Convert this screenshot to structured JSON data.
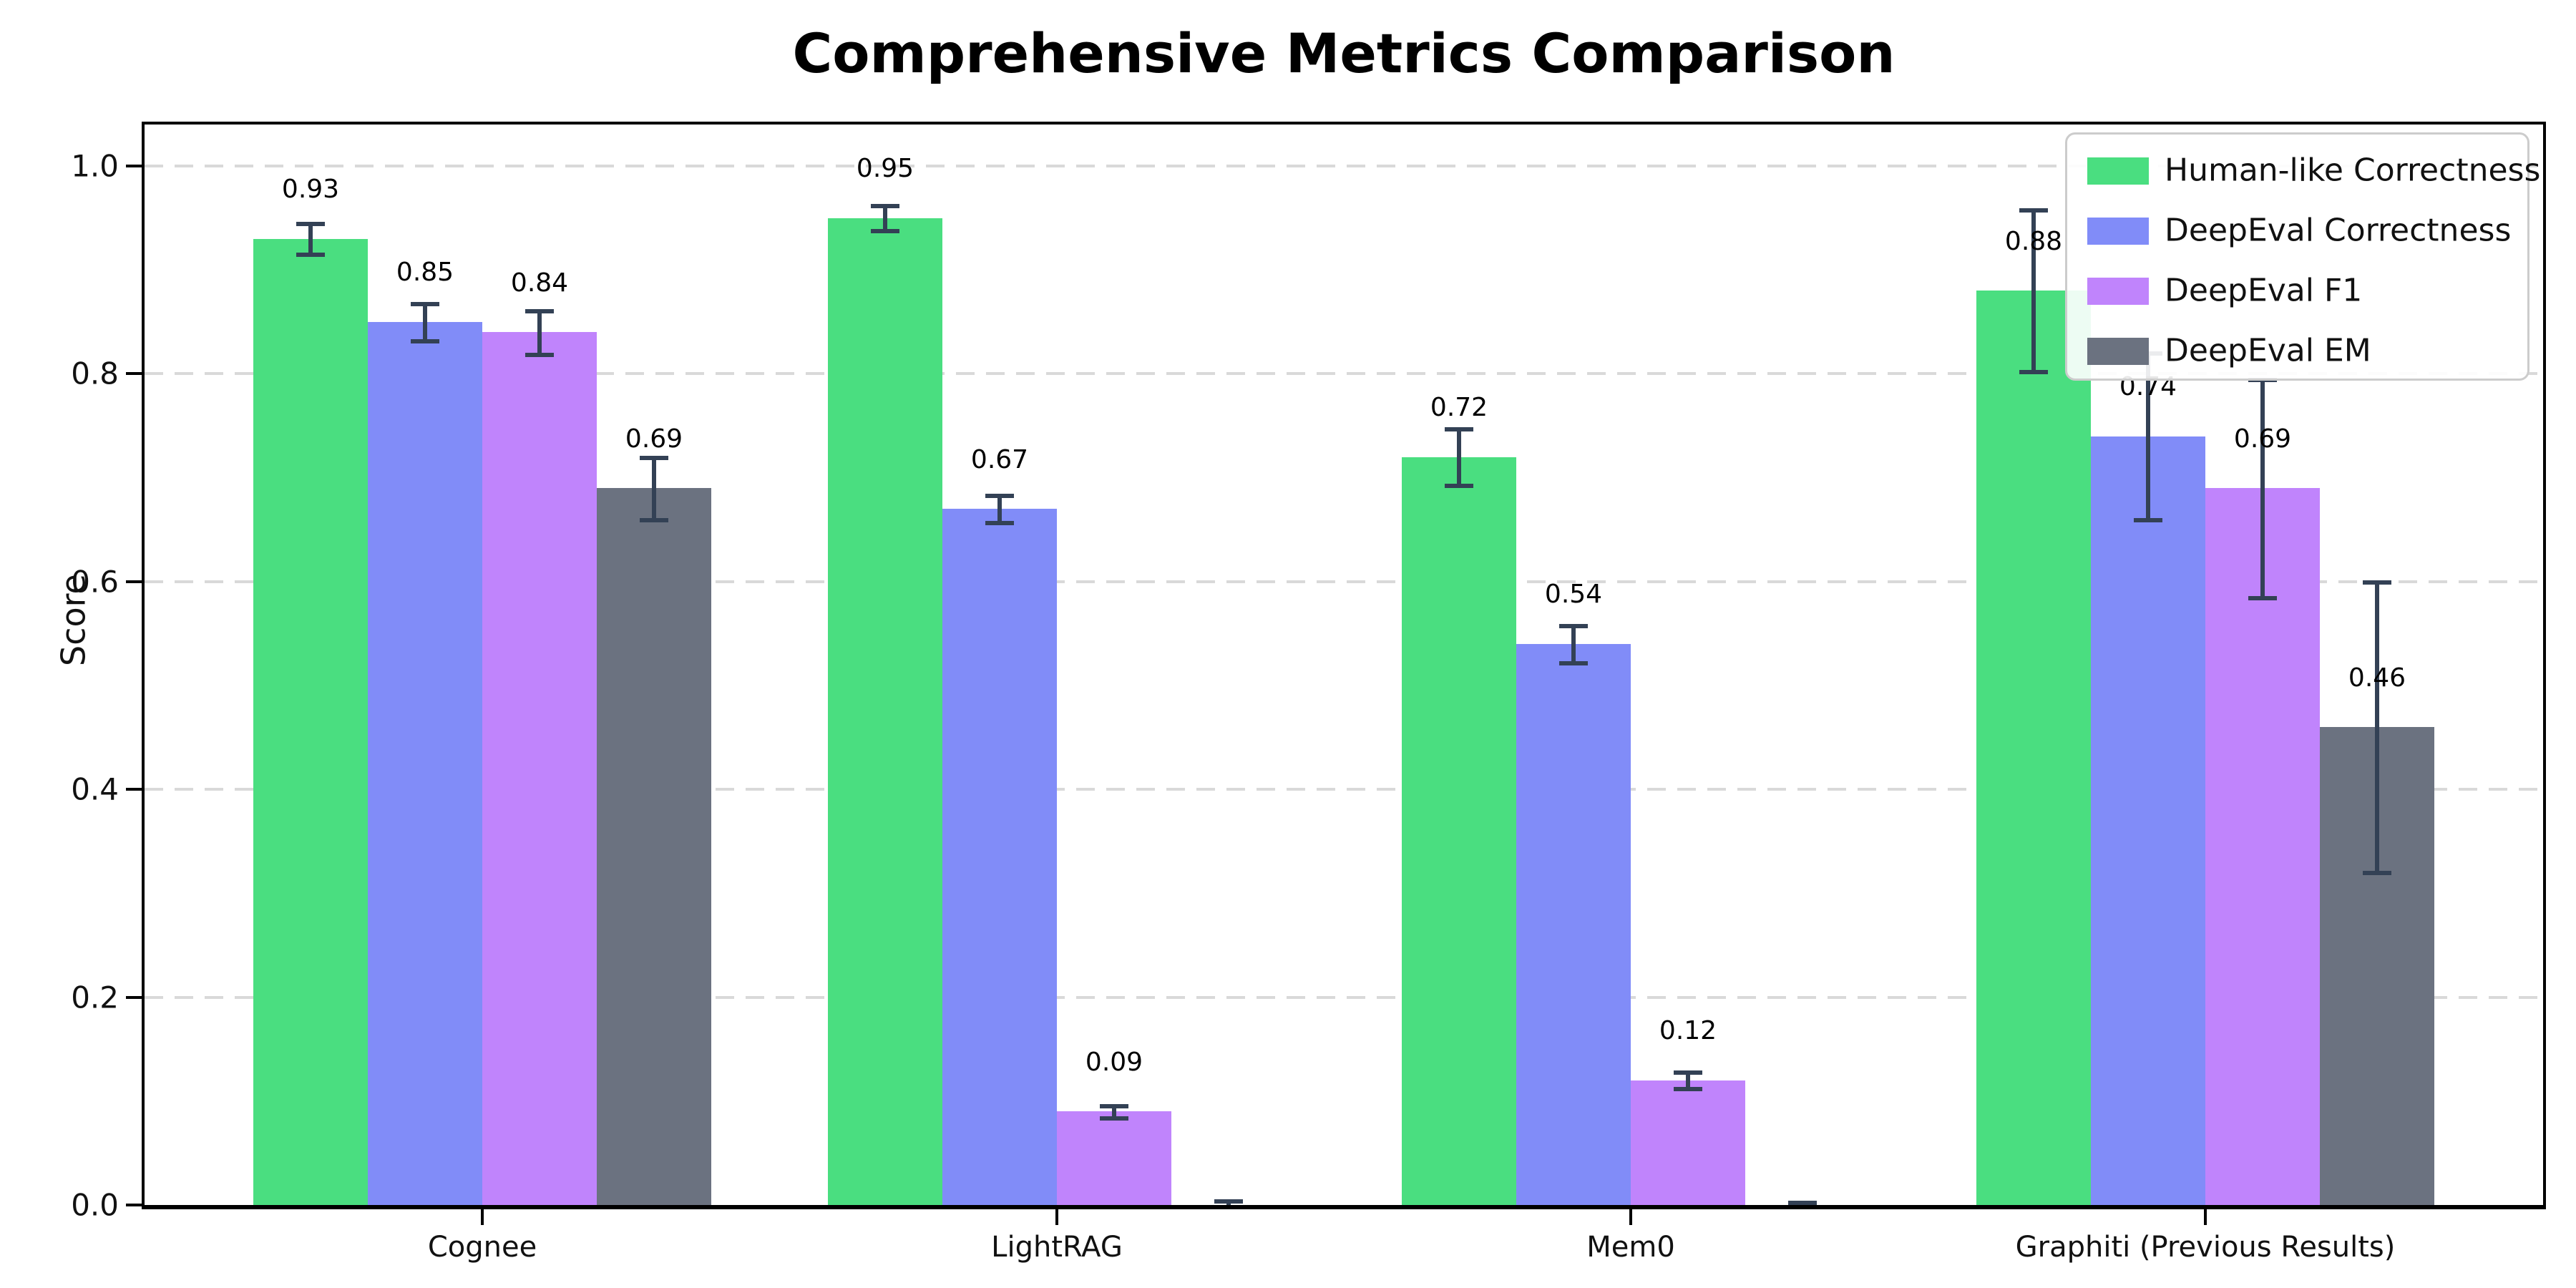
{
  "chart_data": {
    "type": "bar",
    "title": "Comprehensive Metrics Comparison",
    "ylabel": "Score",
    "xlabel": "",
    "ylim": [
      0,
      1.05
    ],
    "yticks": [
      "0.0",
      "0.2",
      "0.4",
      "0.6",
      "0.8",
      "1.0"
    ],
    "grid": "horizontal-dashed",
    "grid_color": "#d9d9d9",
    "legend_position": "upper right",
    "error_bar_color": "#334155",
    "categories": [
      "Cognee",
      "LightRAG",
      "Mem0",
      "Graphiti (Previous Results)"
    ],
    "series": [
      {
        "name": "Human-like Correctness",
        "color": "#4ade80",
        "values": [
          0.93,
          0.95,
          0.72,
          0.88
        ],
        "errors": [
          0.015,
          0.012,
          0.027,
          0.078
        ],
        "labels": [
          "0.93",
          "0.95",
          "0.72",
          "0.88"
        ]
      },
      {
        "name": "DeepEval Correctness",
        "color": "#818cf8",
        "values": [
          0.85,
          0.67,
          0.54,
          0.74
        ],
        "errors": [
          0.018,
          0.013,
          0.018,
          0.08
        ],
        "labels": [
          "0.85",
          "0.67",
          "0.54",
          "0.74"
        ]
      },
      {
        "name": "DeepEval F1",
        "color": "#c084fc",
        "values": [
          0.84,
          0.09,
          0.12,
          0.69
        ],
        "errors": [
          0.021,
          0.006,
          0.008,
          0.105
        ],
        "labels": [
          "0.84",
          "0.09",
          "0.12",
          "0.69"
        ]
      },
      {
        "name": "DeepEval EM",
        "color": "#6b7280",
        "values": [
          0.69,
          0.0,
          0.0,
          0.46
        ],
        "errors": [
          0.03,
          0.004,
          0.003,
          0.14
        ],
        "labels": [
          "0.69",
          "",
          "",
          "0.46"
        ]
      }
    ]
  }
}
